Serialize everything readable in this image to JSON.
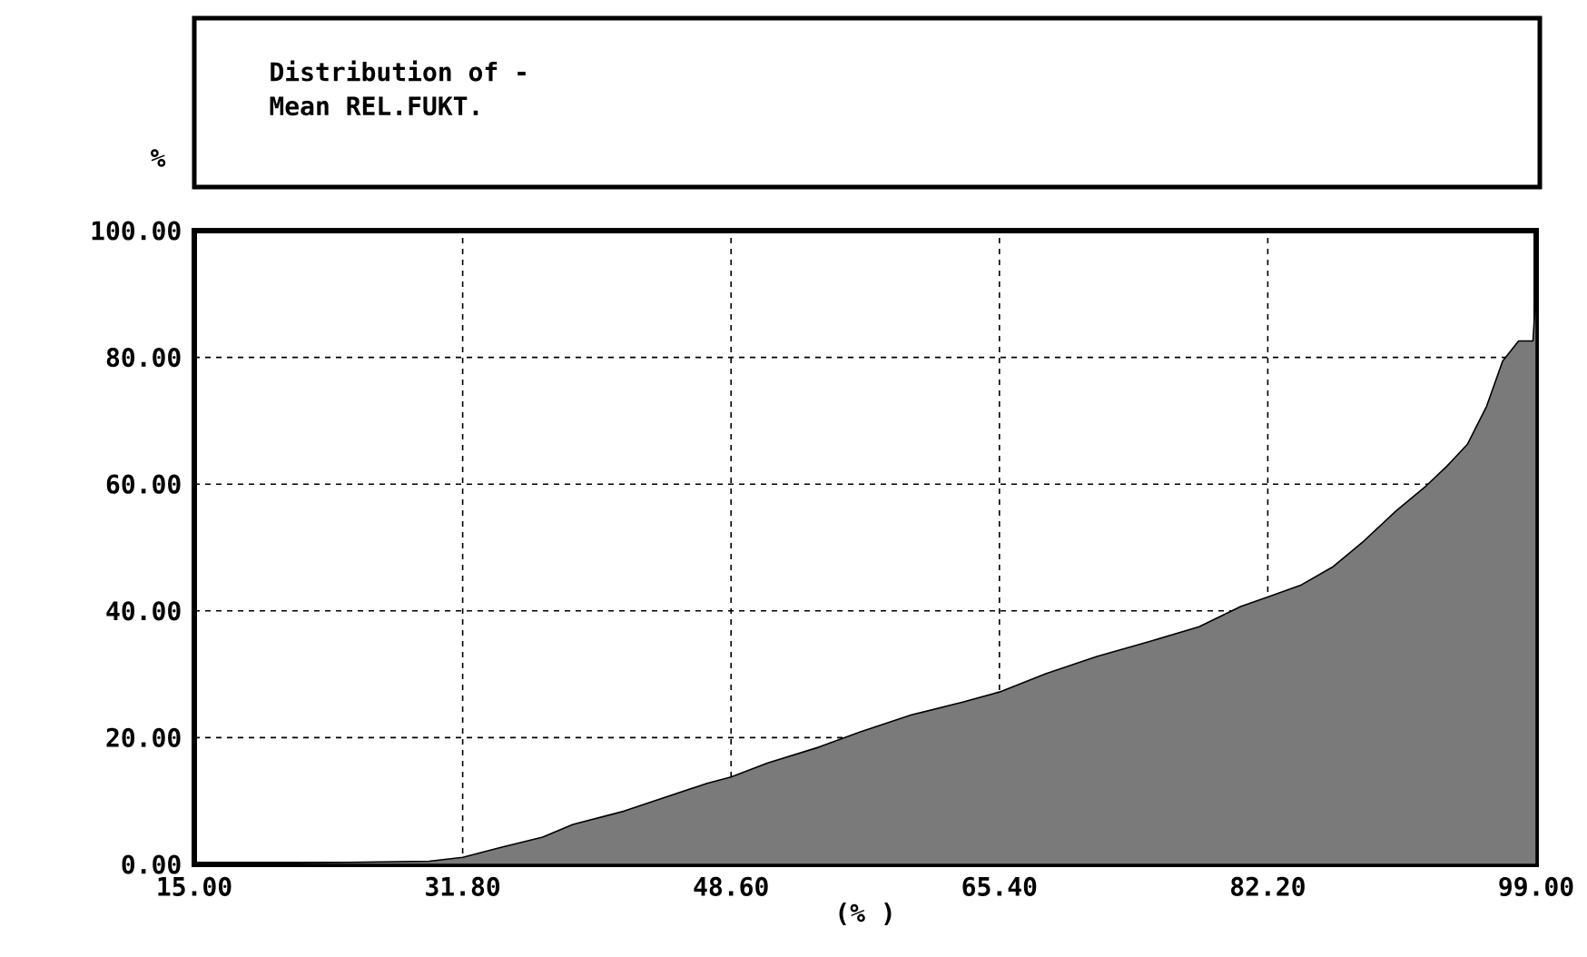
{
  "chart_data": {
    "type": "area",
    "title": "Distribution of -",
    "subtitle": "Mean REL.FUKT.",
    "xlabel": "(% )",
    "ylabel": "%",
    "x": [
      15,
      29.7,
      31.8,
      34.2,
      36.8,
      38.7,
      41.9,
      44.5,
      47.1,
      48.6,
      50.9,
      54.1,
      56.7,
      59.9,
      63.1,
      65.4,
      68.3,
      71.5,
      74.7,
      77.9,
      80.5,
      82.2,
      84.3,
      86.3,
      88.2,
      90.2,
      92.1,
      93.4,
      94.7,
      95.9,
      96.9,
      97.9,
      98.8,
      99
    ],
    "values": [
      0,
      0.5,
      1.1,
      2.7,
      4.3,
      6.3,
      8.4,
      10.6,
      12.8,
      13.8,
      16.0,
      18.5,
      20.9,
      23.6,
      25.6,
      27.2,
      30.1,
      32.8,
      35.1,
      37.5,
      40.7,
      42.2,
      44.1,
      47,
      51,
      55.7,
      59.7,
      62.8,
      66.3,
      72.3,
      79.4,
      82.6,
      82.6,
      91
    ],
    "color": "#7a7a7a",
    "xlim": [
      15,
      99
    ],
    "ylim": [
      0,
      100
    ],
    "xticks": [
      {
        "value": 15,
        "label": "15.00"
      },
      {
        "value": 31.8,
        "label": "31.80"
      },
      {
        "value": 48.6,
        "label": "48.60"
      },
      {
        "value": 65.4,
        "label": "65.40"
      },
      {
        "value": 82.2,
        "label": "82.20"
      },
      {
        "value": 99,
        "label": "99.00"
      }
    ],
    "yticks": [
      {
        "value": 0,
        "label": "0.00"
      },
      {
        "value": 20,
        "label": "20.00"
      },
      {
        "value": 40,
        "label": "40.00"
      },
      {
        "value": 60,
        "label": "60.00"
      },
      {
        "value": 80,
        "label": "80.00"
      },
      {
        "value": 100,
        "label": "100.00"
      }
    ],
    "grid": true
  }
}
